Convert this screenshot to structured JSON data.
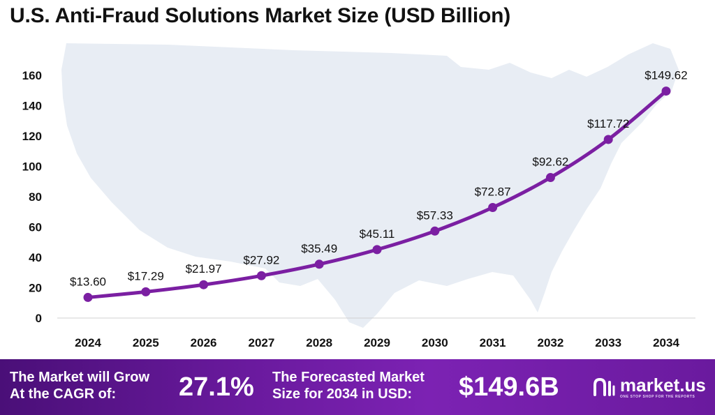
{
  "title": "U.S. Anti-Fraud Solutions Market Size (USD Billion)",
  "chart_data": {
    "type": "line",
    "title": "U.S. Anti-Fraud Solutions Market Size (USD Billion)",
    "xlabel": "",
    "ylabel": "",
    "categories": [
      "2024",
      "2025",
      "2026",
      "2027",
      "2028",
      "2029",
      "2030",
      "2031",
      "2032",
      "2033",
      "2034"
    ],
    "values": [
      13.6,
      17.29,
      21.97,
      27.92,
      35.49,
      45.11,
      57.33,
      72.87,
      92.62,
      117.72,
      149.62
    ],
    "data_labels": [
      "$13.60",
      "$17.29",
      "$21.97",
      "$27.92",
      "$35.49",
      "$45.11",
      "$57.33",
      "$72.87",
      "$92.62",
      "$117.72",
      "$149.62"
    ],
    "yticks": [
      "0",
      "20",
      "40",
      "60",
      "80",
      "100",
      "120",
      "140",
      "160"
    ],
    "ylim": [
      0,
      160
    ],
    "grid": false,
    "legend": "none",
    "line_color": "#7b1fa2",
    "background_map": "United States"
  },
  "footer": {
    "cagr_label_line1": "The Market will Grow",
    "cagr_label_line2": "At the CAGR of:",
    "cagr_value": "27.1%",
    "forecast_label_line1": "The Forecasted Market",
    "forecast_label_line2": "Size for 2034 in USD:",
    "forecast_value": "$149.6B",
    "logo_name": "market.us",
    "logo_tagline": "ONE STOP SHOP FOR THE REPORTS",
    "logo_icon": "market-us-logo-icon"
  },
  "colors": {
    "accent": "#7b1fa2",
    "footer_bg": "#5e1690",
    "map": "#e6ebf3"
  }
}
